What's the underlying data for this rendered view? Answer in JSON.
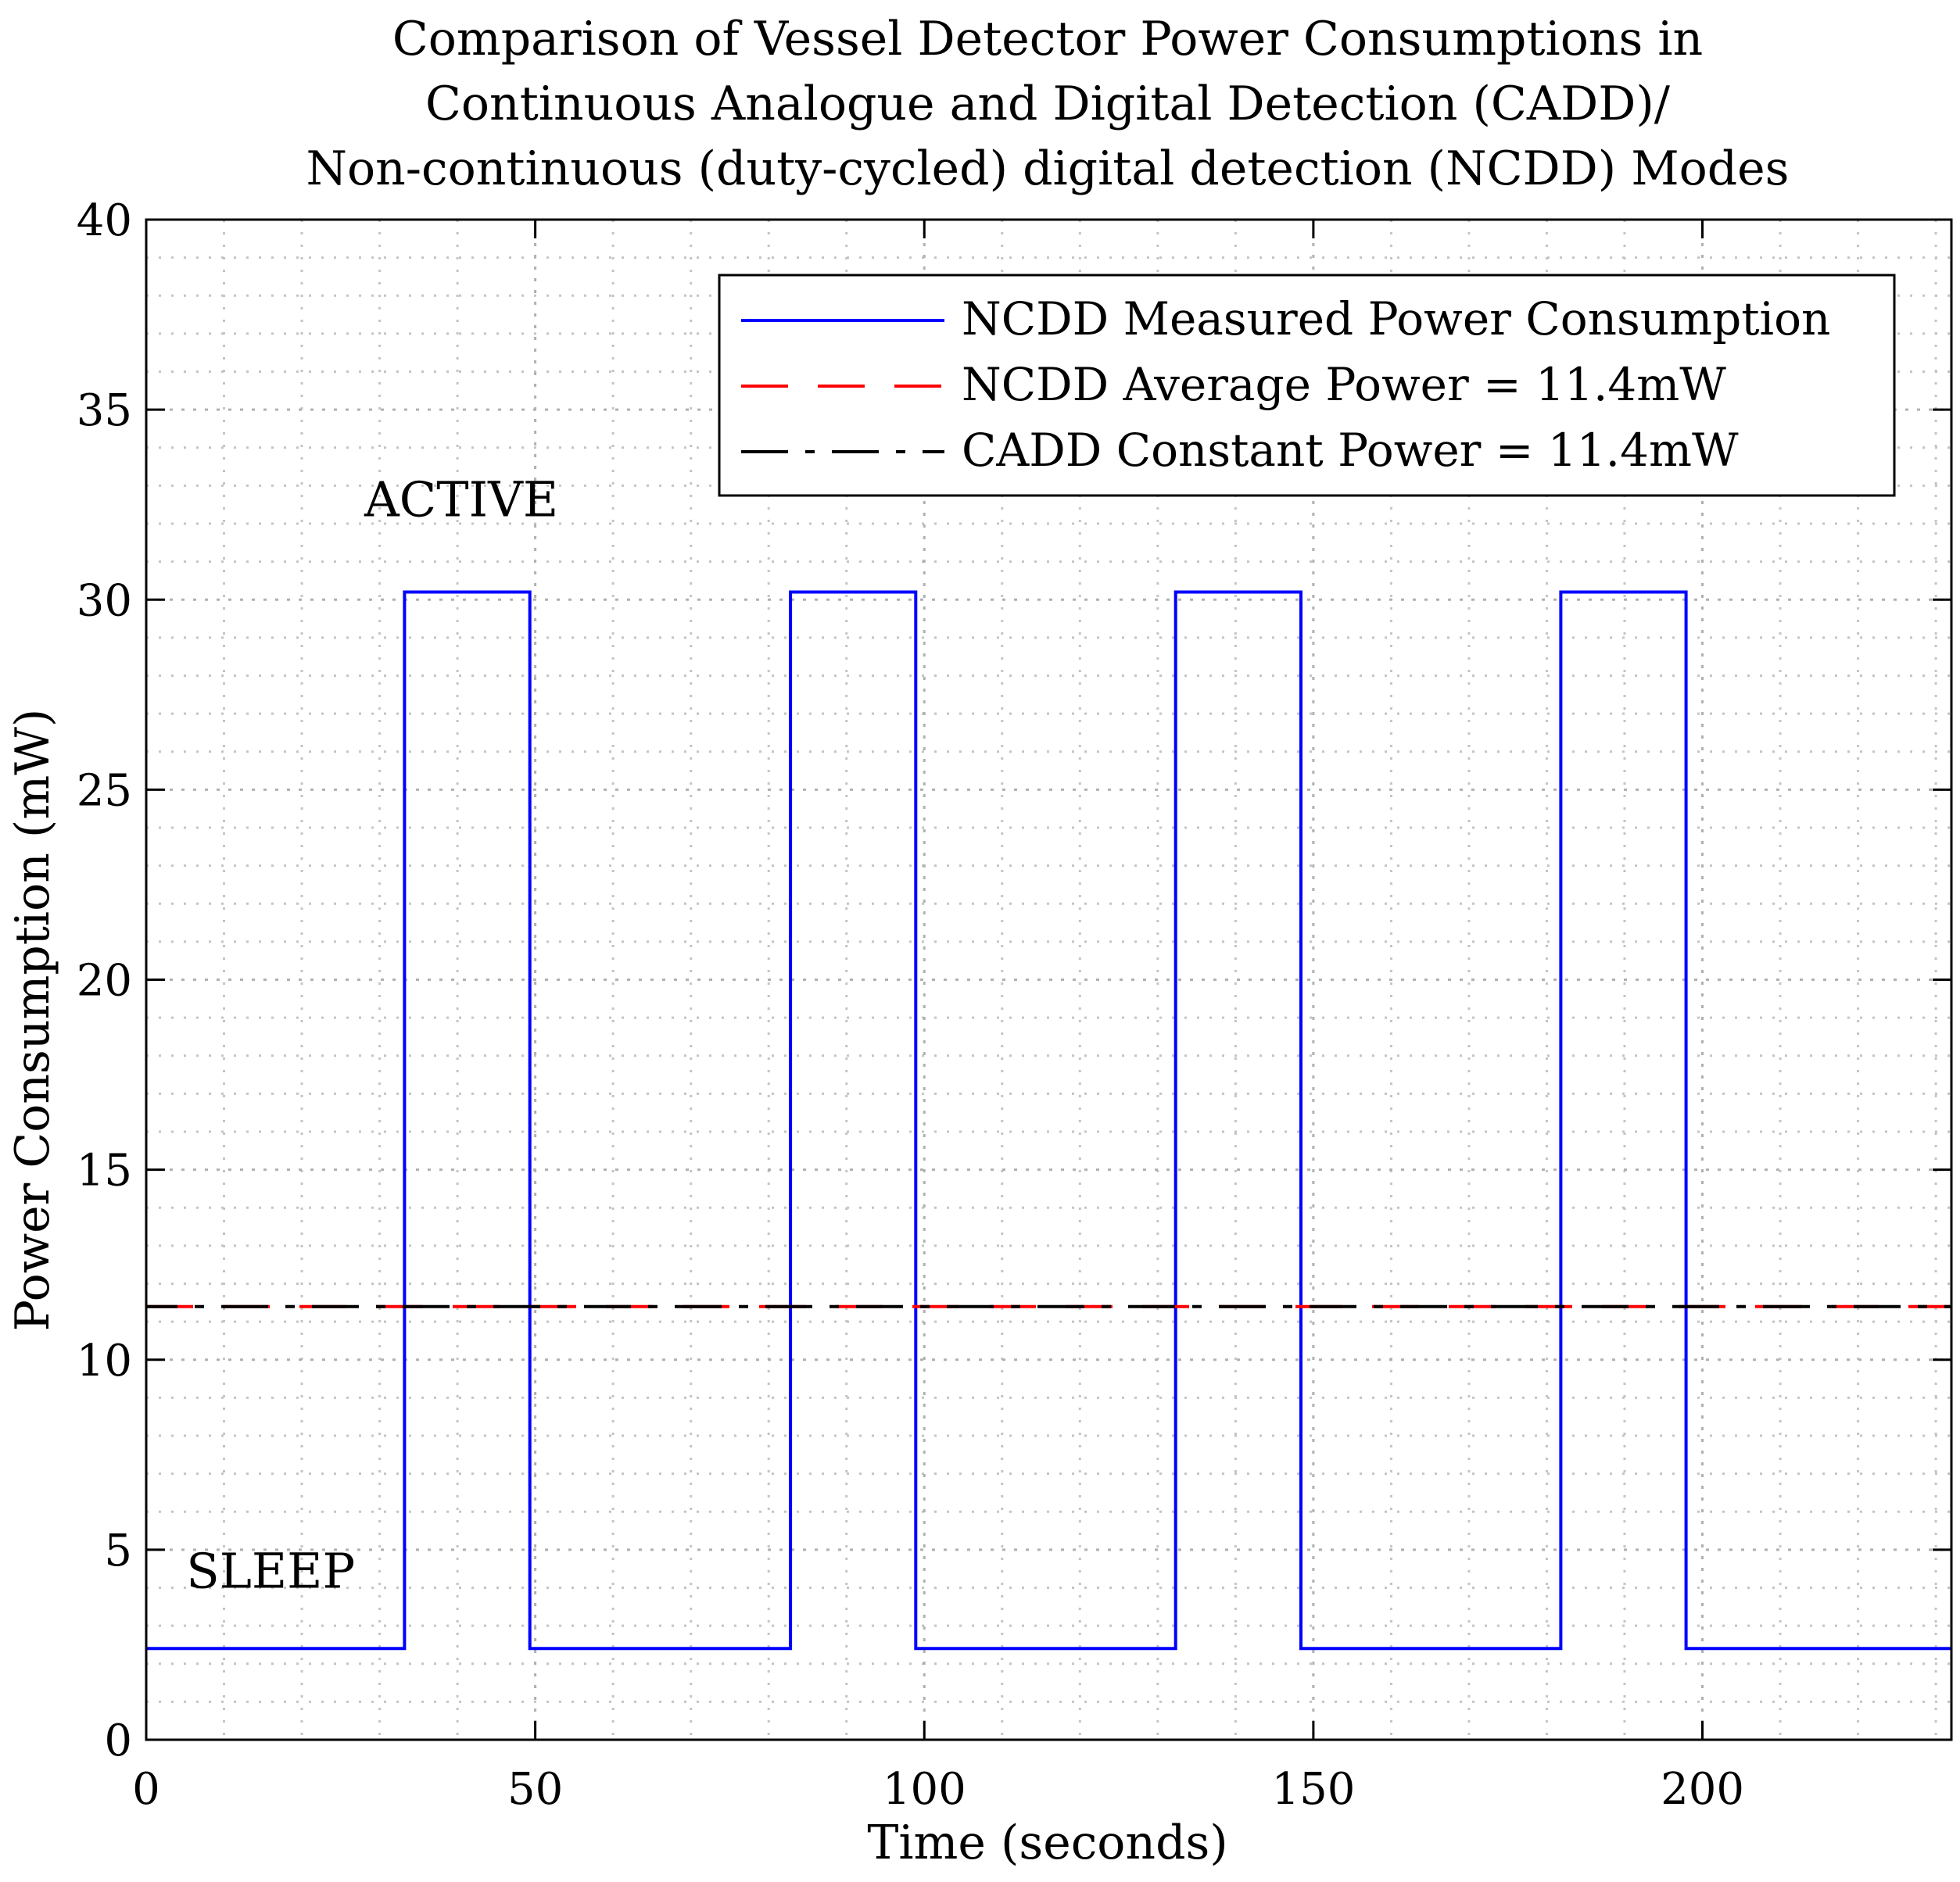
{
  "chart_data": {
    "type": "line",
    "title_lines": [
      "Comparison of Vessel Detector Power Consumptions in",
      "Continuous Analogue and Digital Detection (CADD)/",
      "Non-continuous (duty-cycled) digital detection (NCDD) Modes"
    ],
    "xlabel": "Time (seconds)",
    "ylabel": "Power Consumption (mW)",
    "xlim": [
      0,
      232
    ],
    "ylim": [
      0,
      40
    ],
    "x_ticks": [
      0,
      50,
      100,
      150,
      200
    ],
    "y_ticks": [
      0,
      5,
      10,
      15,
      20,
      25,
      30,
      35,
      40
    ],
    "grid": true,
    "minor_grid": true,
    "legend_position": "top-right",
    "series": [
      {
        "name": "NCDD Measured Power Consumption",
        "color": "#0000ff",
        "style": "solid",
        "points": [
          [
            0,
            2.4
          ],
          [
            33.2,
            2.4
          ],
          [
            33.2,
            30.2
          ],
          [
            49.3,
            30.2
          ],
          [
            49.3,
            2.4
          ],
          [
            82.8,
            2.4
          ],
          [
            82.8,
            30.2
          ],
          [
            98.9,
            30.2
          ],
          [
            98.9,
            2.4
          ],
          [
            132.3,
            2.4
          ],
          [
            132.3,
            30.2
          ],
          [
            148.4,
            30.2
          ],
          [
            148.4,
            2.4
          ],
          [
            181.8,
            2.4
          ],
          [
            181.8,
            30.2
          ],
          [
            197.9,
            30.2
          ],
          [
            197.9,
            2.4
          ],
          [
            232,
            2.4
          ]
        ]
      },
      {
        "name": "NCDD Average Power = 11.4mW",
        "color": "#ff0000",
        "style": "dashed",
        "points": [
          [
            0,
            11.4
          ],
          [
            232,
            11.4
          ]
        ]
      },
      {
        "name": "CADD Constant Power = 11.4mW",
        "color": "#000000",
        "style": "dashdot",
        "points": [
          [
            0,
            11.4
          ],
          [
            232,
            11.4
          ]
        ]
      }
    ],
    "annotations": [
      {
        "text": "ACTIVE",
        "x": 40.5,
        "y": 32.2
      },
      {
        "text": "SLEEP",
        "x": 16,
        "y": 4.0
      }
    ]
  }
}
